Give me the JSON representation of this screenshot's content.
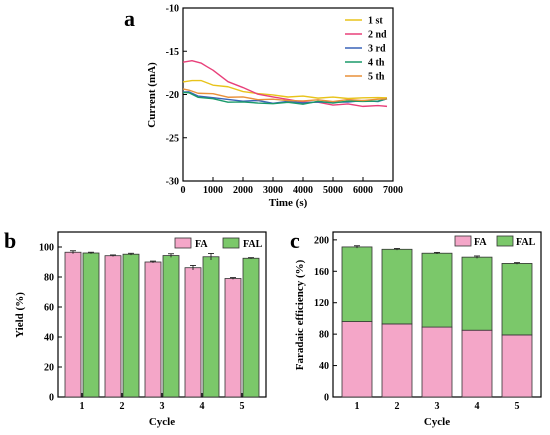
{
  "colors": {
    "fa": "#F4A6C8",
    "fal": "#7BC86A",
    "stroke": "#333333"
  },
  "chart_data": [
    {
      "panel": "a",
      "type": "line",
      "xlabel": "Time (s)",
      "ylabel": "Current  (mA)",
      "xlim": [
        0,
        7000
      ],
      "ylim": [
        -30,
        -10
      ],
      "xticks": [
        0,
        1000,
        2000,
        3000,
        4000,
        5000,
        6000,
        7000
      ],
      "yticks": [
        -10,
        -15,
        -20,
        -25,
        -30
      ],
      "legend_position": "top-right",
      "series": [
        {
          "name": "1 st",
          "color": "#E8C31A",
          "x": [
            0,
            300,
            600,
            1000,
            1500,
            2000,
            2500,
            3000,
            3500,
            4000,
            4500,
            5000,
            5500,
            6000,
            6500,
            6800
          ],
          "y": [
            -18.6,
            -18.3,
            -18.5,
            -18.8,
            -19.2,
            -19.6,
            -19.9,
            -20.1,
            -20.2,
            -20.3,
            -20.3,
            -20.4,
            -20.4,
            -20.4,
            -20.4,
            -20.3
          ]
        },
        {
          "name": "2 nd",
          "color": "#E8407A",
          "x": [
            0,
            300,
            600,
            800,
            1000,
            1500,
            2000,
            2500,
            3000,
            3500,
            4000,
            4500,
            5000,
            5500,
            6000,
            6500,
            6800
          ],
          "y": [
            -16.2,
            -16.1,
            -16.4,
            -16.7,
            -17.3,
            -18.4,
            -19.3,
            -19.9,
            -20.3,
            -20.6,
            -20.8,
            -21.0,
            -21.1,
            -21.2,
            -21.3,
            -21.3,
            -21.4
          ]
        },
        {
          "name": "3 rd",
          "color": "#3A63B8",
          "x": [
            0,
            200,
            500,
            1000,
            1500,
            2000,
            2500,
            3000,
            3500,
            4000,
            4500,
            5000,
            5500,
            6000,
            6500,
            6800
          ],
          "y": [
            -19.6,
            -19.8,
            -20.1,
            -20.4,
            -20.6,
            -20.7,
            -20.8,
            -20.9,
            -20.9,
            -20.9,
            -20.9,
            -20.9,
            -20.8,
            -20.8,
            -20.7,
            -20.6
          ]
        },
        {
          "name": "4 th",
          "color": "#1A9A6A",
          "x": [
            0,
            200,
            500,
            1000,
            1500,
            2000,
            2500,
            3000,
            3500,
            4000,
            4500,
            5000,
            5500,
            6000,
            6500,
            6800
          ],
          "y": [
            -19.7,
            -19.9,
            -20.2,
            -20.6,
            -20.8,
            -20.9,
            -21.0,
            -21.0,
            -21.0,
            -21.0,
            -20.9,
            -20.9,
            -20.8,
            -20.8,
            -20.7,
            -20.6
          ]
        },
        {
          "name": "5 th",
          "color": "#E8903A",
          "x": [
            0,
            200,
            500,
            1000,
            1500,
            2000,
            2500,
            3000,
            3500,
            4000,
            4500,
            5000,
            5500,
            6000,
            6500,
            6800
          ],
          "y": [
            -19.4,
            -19.5,
            -19.8,
            -20.0,
            -20.2,
            -20.4,
            -20.5,
            -20.6,
            -20.7,
            -20.7,
            -20.7,
            -20.7,
            -20.7,
            -20.6,
            -20.6,
            -20.5
          ]
        }
      ]
    },
    {
      "panel": "b",
      "type": "bar",
      "xlabel": "Cycle",
      "ylabel": "Yield (%)",
      "categories": [
        "1",
        "2",
        "3",
        "4",
        "5"
      ],
      "ylim": [
        0,
        110
      ],
      "yticks": [
        0,
        20,
        40,
        60,
        80,
        100
      ],
      "legend_position": "top-right",
      "series": [
        {
          "name": "FA",
          "values": [
            96.5,
            94.2,
            90.0,
            86.2,
            79.0
          ],
          "errors": [
            1.0,
            0.5,
            0.6,
            1.5,
            0.6
          ]
        },
        {
          "name": "FAL",
          "values": [
            96.0,
            95.2,
            94.3,
            93.5,
            92.5
          ],
          "errors": [
            0.5,
            0.6,
            1.2,
            2.2,
            0.4
          ]
        }
      ]
    },
    {
      "panel": "c",
      "type": "bar",
      "stacked": true,
      "xlabel": "Cycle",
      "ylabel": "Faradaic efficiency (%)",
      "categories": [
        "1",
        "2",
        "3",
        "4",
        "5"
      ],
      "ylim": [
        0,
        210
      ],
      "yticks": [
        0,
        40,
        80,
        120,
        160,
        200
      ],
      "legend_position": "top-right",
      "series": [
        {
          "name": "FA",
          "values": [
            96,
            93,
            89,
            85,
            79
          ]
        },
        {
          "name": "FAL",
          "values": [
            95,
            95,
            94,
            93,
            91
          ]
        }
      ],
      "total_errors": [
        1.5,
        1.0,
        1.0,
        1.5,
        1.0
      ]
    }
  ]
}
